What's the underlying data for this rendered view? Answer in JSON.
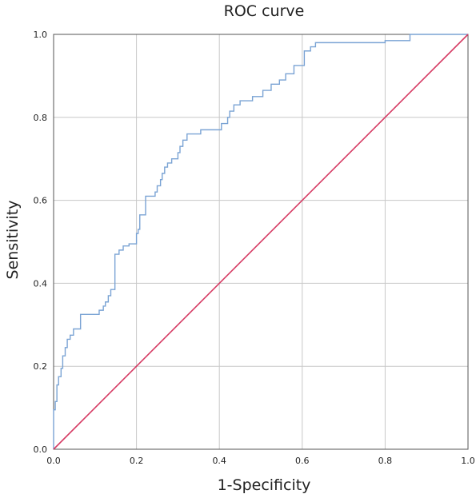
{
  "chart_data": {
    "type": "line",
    "title": "ROC curve",
    "xlabel": "1-Specificity",
    "ylabel": "Sensitivity",
    "xlim": [
      0.0,
      1.0
    ],
    "ylim": [
      0.0,
      1.0
    ],
    "x_ticks": [
      "0.0",
      "0.2",
      "0.4",
      "0.6",
      "0.8",
      "1.0"
    ],
    "y_ticks": [
      "0.0",
      "0.2",
      "0.4",
      "0.6",
      "0.8",
      "1.0"
    ],
    "grid": true,
    "legend": "none",
    "colors": {
      "roc": "#7aa3d4",
      "reference": "#d63a63",
      "grid": "#c8c8c8",
      "frame": "#555555"
    },
    "series": [
      {
        "role": "roc",
        "step": true,
        "points": [
          [
            0.0,
            0.0
          ],
          [
            0.0,
            0.095
          ],
          [
            0.004,
            0.095
          ],
          [
            0.004,
            0.115
          ],
          [
            0.008,
            0.115
          ],
          [
            0.008,
            0.155
          ],
          [
            0.012,
            0.155
          ],
          [
            0.012,
            0.175
          ],
          [
            0.018,
            0.175
          ],
          [
            0.018,
            0.195
          ],
          [
            0.022,
            0.195
          ],
          [
            0.022,
            0.225
          ],
          [
            0.028,
            0.225
          ],
          [
            0.028,
            0.245
          ],
          [
            0.033,
            0.245
          ],
          [
            0.033,
            0.265
          ],
          [
            0.04,
            0.265
          ],
          [
            0.04,
            0.275
          ],
          [
            0.048,
            0.275
          ],
          [
            0.048,
            0.29
          ],
          [
            0.065,
            0.29
          ],
          [
            0.065,
            0.325
          ],
          [
            0.11,
            0.325
          ],
          [
            0.11,
            0.335
          ],
          [
            0.12,
            0.335
          ],
          [
            0.12,
            0.345
          ],
          [
            0.125,
            0.345
          ],
          [
            0.125,
            0.355
          ],
          [
            0.132,
            0.355
          ],
          [
            0.132,
            0.37
          ],
          [
            0.138,
            0.37
          ],
          [
            0.138,
            0.385
          ],
          [
            0.148,
            0.385
          ],
          [
            0.148,
            0.47
          ],
          [
            0.158,
            0.47
          ],
          [
            0.158,
            0.48
          ],
          [
            0.168,
            0.48
          ],
          [
            0.168,
            0.49
          ],
          [
            0.182,
            0.49
          ],
          [
            0.182,
            0.495
          ],
          [
            0.2,
            0.495
          ],
          [
            0.2,
            0.52
          ],
          [
            0.204,
            0.52
          ],
          [
            0.204,
            0.53
          ],
          [
            0.208,
            0.53
          ],
          [
            0.208,
            0.565
          ],
          [
            0.222,
            0.565
          ],
          [
            0.222,
            0.61
          ],
          [
            0.245,
            0.61
          ],
          [
            0.245,
            0.62
          ],
          [
            0.25,
            0.62
          ],
          [
            0.25,
            0.635
          ],
          [
            0.258,
            0.635
          ],
          [
            0.258,
            0.65
          ],
          [
            0.262,
            0.65
          ],
          [
            0.262,
            0.665
          ],
          [
            0.268,
            0.665
          ],
          [
            0.268,
            0.68
          ],
          [
            0.275,
            0.68
          ],
          [
            0.275,
            0.69
          ],
          [
            0.285,
            0.69
          ],
          [
            0.285,
            0.7
          ],
          [
            0.3,
            0.7
          ],
          [
            0.3,
            0.715
          ],
          [
            0.305,
            0.715
          ],
          [
            0.305,
            0.73
          ],
          [
            0.312,
            0.73
          ],
          [
            0.312,
            0.745
          ],
          [
            0.322,
            0.745
          ],
          [
            0.322,
            0.76
          ],
          [
            0.355,
            0.76
          ],
          [
            0.355,
            0.77
          ],
          [
            0.405,
            0.77
          ],
          [
            0.405,
            0.785
          ],
          [
            0.42,
            0.785
          ],
          [
            0.42,
            0.8
          ],
          [
            0.425,
            0.8
          ],
          [
            0.425,
            0.815
          ],
          [
            0.435,
            0.815
          ],
          [
            0.435,
            0.83
          ],
          [
            0.45,
            0.83
          ],
          [
            0.45,
            0.84
          ],
          [
            0.48,
            0.84
          ],
          [
            0.48,
            0.85
          ],
          [
            0.505,
            0.85
          ],
          [
            0.505,
            0.865
          ],
          [
            0.525,
            0.865
          ],
          [
            0.525,
            0.88
          ],
          [
            0.545,
            0.88
          ],
          [
            0.545,
            0.89
          ],
          [
            0.56,
            0.89
          ],
          [
            0.56,
            0.905
          ],
          [
            0.58,
            0.905
          ],
          [
            0.58,
            0.925
          ],
          [
            0.605,
            0.925
          ],
          [
            0.605,
            0.96
          ],
          [
            0.62,
            0.96
          ],
          [
            0.62,
            0.97
          ],
          [
            0.632,
            0.97
          ],
          [
            0.632,
            0.98
          ],
          [
            0.8,
            0.98
          ],
          [
            0.8,
            0.985
          ],
          [
            0.86,
            0.985
          ],
          [
            0.86,
            1.0
          ],
          [
            1.0,
            1.0
          ]
        ]
      },
      {
        "role": "reference",
        "step": false,
        "points": [
          [
            0.0,
            0.0
          ],
          [
            1.0,
            1.0
          ]
        ]
      }
    ]
  }
}
